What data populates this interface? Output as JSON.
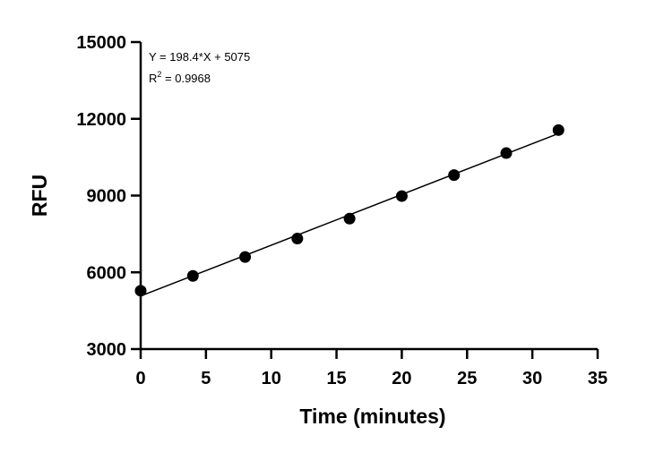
{
  "chart_data": {
    "type": "scatter",
    "xlabel": "Time (minutes)",
    "ylabel": "RFU",
    "xlim": [
      0,
      35
    ],
    "ylim": [
      3000,
      15000
    ],
    "x_ticks": [
      "0",
      "5",
      "10",
      "15",
      "20",
      "25",
      "30",
      "35"
    ],
    "y_ticks": [
      "3000",
      "6000",
      "9000",
      "12000",
      "15000"
    ],
    "grid": false,
    "legend": "none",
    "series": [
      {
        "x": [
          0,
          4,
          8,
          12,
          16,
          20,
          24,
          28,
          32
        ],
        "y": [
          5280,
          5860,
          6600,
          7320,
          8100,
          8980,
          9800,
          10660,
          11560
        ]
      }
    ],
    "fit": {
      "slope": 198.4,
      "intercept": 5075,
      "x_range": [
        0,
        32
      ]
    },
    "annotations": {
      "equation": "Y = 198.4*X + 5075",
      "r2_prefix": "R",
      "r2_sup": "2",
      "r2_suffix": " = 0.9968"
    },
    "colors": {
      "marker": "#000000",
      "line": "#000000",
      "axis": "#000000"
    }
  }
}
